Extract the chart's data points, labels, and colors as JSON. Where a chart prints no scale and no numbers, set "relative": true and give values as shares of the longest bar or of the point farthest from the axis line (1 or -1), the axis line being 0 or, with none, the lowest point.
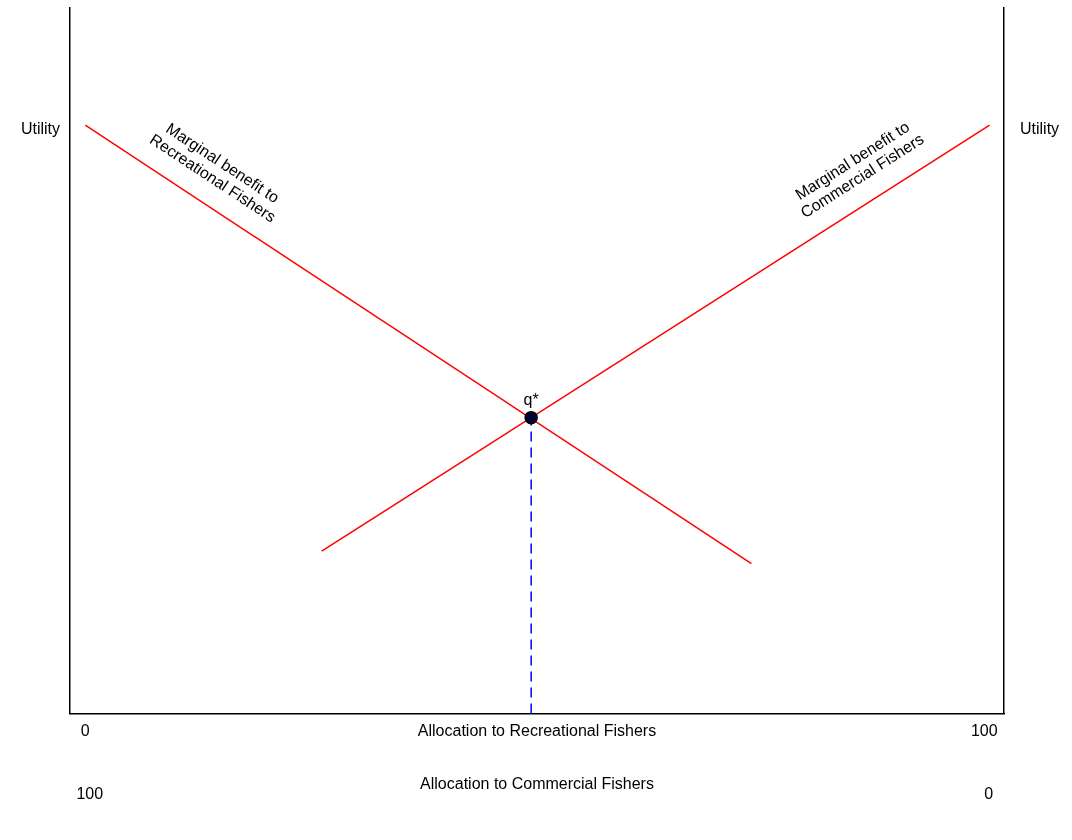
{
  "chart_data": {
    "type": "line",
    "relative": true,
    "xlabel": "Allocation to Recreational Fishers",
    "x2label": "Allocation to Commercial Fishers",
    "ylabel": "Utility",
    "y2label": "Utility",
    "xlim": [
      -1.7,
      102.2
    ],
    "xticks": [
      0,
      100
    ],
    "x2lim": [
      102.2,
      -1.7
    ],
    "x2ticks": [
      0,
      100
    ],
    "grid": false,
    "legend": false,
    "series": [
      {
        "name": "Marginal benefit to Recreational Fishers",
        "color": "#ff0000",
        "x": [
          0,
          74.1
        ],
        "values": [
          1,
          0.255
        ],
        "marker": "none",
        "line_style": "solid"
      },
      {
        "name": "Marginal benefit to Commercial Fishers",
        "color": "#ff0000",
        "x": [
          26.3,
          100.6
        ],
        "values": [
          0.276,
          1
        ],
        "marker": "none",
        "line_style": "solid"
      },
      {
        "type": "line",
        "color": "#0000ff",
        "x": [
          49.6,
          49.6
        ],
        "values": [
          0,
          0.503
        ],
        "marker": "none",
        "line_style": "dashed"
      },
      {
        "type": "scatter",
        "color": "#000033",
        "x": [
          49.6
        ],
        "values": [
          0.503
        ],
        "marker": "circle"
      }
    ],
    "annotations": [
      {
        "text": "q*",
        "x": 49.6,
        "y": 0.503
      }
    ]
  }
}
